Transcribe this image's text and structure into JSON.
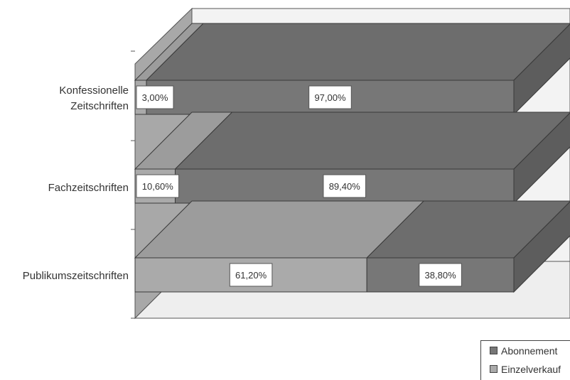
{
  "chart_data": {
    "type": "bar",
    "orientation": "horizontal",
    "stacked": "percent",
    "three_d": true,
    "categories": [
      "Konfessionelle Zeitschriften",
      "Fachzeitschriften",
      "Publikumszeitschriften"
    ],
    "category_lines": [
      [
        "Konfessionelle",
        "Zeitschriften"
      ],
      [
        "Fachzeitschriften"
      ],
      [
        "Publikumszeitschriften"
      ]
    ],
    "series": [
      {
        "name": "Einzelverkauf",
        "values": [
          3.0,
          10.6,
          61.2
        ],
        "labels": [
          "3,00%",
          "10,60%",
          "61,20%"
        ],
        "color": "#aaaaaa"
      },
      {
        "name": "Abonnement",
        "values": [
          97.0,
          89.4,
          38.8
        ],
        "labels": [
          "97,00%",
          "89,40%",
          "38,80%"
        ],
        "color": "#777777"
      }
    ],
    "xlim": [
      0,
      100
    ],
    "legend_position": "bottom-right"
  }
}
